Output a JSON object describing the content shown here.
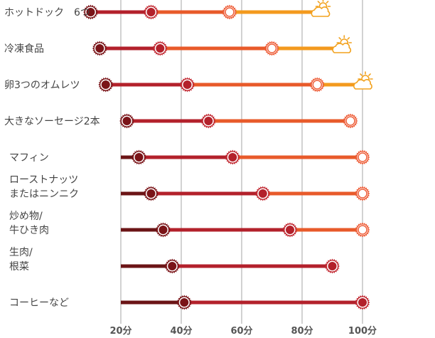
{
  "chart_data": {
    "type": "dot-progress",
    "title": "",
    "xlabel": "",
    "ylabel": "",
    "xlim": [
      0,
      100
    ],
    "xticks": [
      "20分",
      "40分",
      "60分",
      "80分",
      "100分"
    ],
    "x_tick_values": [
      20,
      40,
      60,
      80,
      100
    ],
    "stage_colors": [
      "#6b1416",
      "#b3212b",
      "#e85a2a",
      "#f39a1e"
    ],
    "categories": [
      [
        "ホットドック　6つ"
      ],
      [
        "冷凍食品"
      ],
      [
        "卵3つのオムレツ"
      ],
      [
        "大きなソーセージ2本"
      ],
      [
        "マフィン"
      ],
      [
        "ローストナッツ",
        "またはニンニク"
      ],
      [
        "炒め物/",
        "牛ひき肉"
      ],
      [
        "生肉/",
        "根菜"
      ],
      [
        "コーヒーなど"
      ]
    ],
    "rows": [
      {
        "markers": [
          10,
          30,
          56
        ],
        "marker_types": [
          "dark",
          "mid",
          "light"
        ],
        "cloud": 86
      },
      {
        "markers": [
          13,
          33,
          70
        ],
        "marker_types": [
          "dark",
          "mid",
          "light"
        ],
        "cloud": 93
      },
      {
        "markers": [
          15,
          42,
          85
        ],
        "marker_types": [
          "dark",
          "mid",
          "light"
        ],
        "cloud": 100
      },
      {
        "markers": [
          22,
          49,
          96
        ],
        "marker_types": [
          "dark",
          "mid",
          "light"
        ],
        "cloud": null
      },
      {
        "markers": [
          26,
          57,
          100
        ],
        "marker_types": [
          "dark",
          "mid",
          "light"
        ],
        "cloud": null
      },
      {
        "markers": [
          30,
          67,
          100
        ],
        "marker_types": [
          "dark",
          "mid",
          "light"
        ],
        "cloud": null
      },
      {
        "markers": [
          34,
          76,
          100
        ],
        "marker_types": [
          "dark",
          "mid",
          "light"
        ],
        "cloud": null
      },
      {
        "markers": [
          37,
          90
        ],
        "marker_types": [
          "dark",
          "mid"
        ],
        "cloud": null
      },
      {
        "markers": [
          41,
          100
        ],
        "marker_types": [
          "dark",
          "mid"
        ],
        "cloud": null
      }
    ]
  }
}
